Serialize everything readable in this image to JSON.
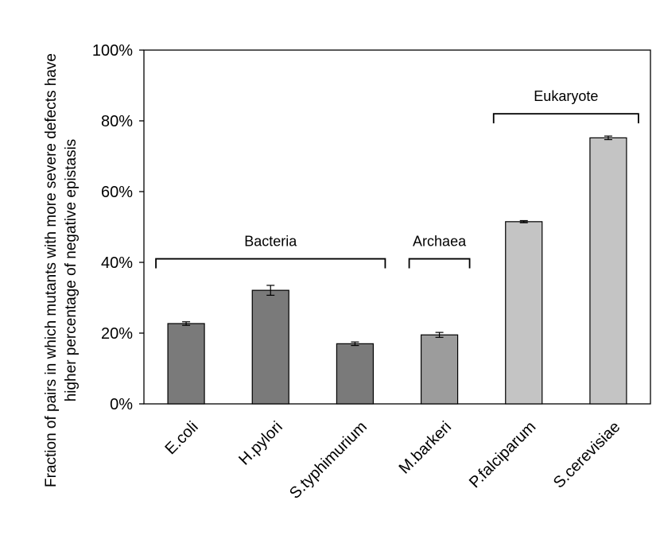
{
  "chart_data": {
    "type": "bar",
    "title": "",
    "xlabel": "",
    "ylabel_lines": [
      "Fraction of pairs in which mutants with more severe defects have",
      "higher percentage of negative epistasis"
    ],
    "ylim": [
      0,
      100
    ],
    "yticks": [
      0,
      20,
      40,
      60,
      80,
      100
    ],
    "ytick_labels": [
      "0%",
      "20%",
      "40%",
      "60%",
      "80%",
      "100%"
    ],
    "grid": false,
    "legend": "none",
    "categories": [
      "E.coli",
      "H.pylori",
      "S.typhimurium",
      "M.barkeri",
      "P.falciparum",
      "S.cerevisiae"
    ],
    "values": [
      22.7,
      32.1,
      17.0,
      19.5,
      51.5,
      75.2
    ],
    "errors": [
      0.5,
      1.4,
      0.5,
      0.7,
      0.3,
      0.5
    ],
    "bar_colors": [
      "#7a7a7a",
      "#7a7a7a",
      "#7a7a7a",
      "#9c9c9c",
      "#c4c4c4",
      "#c4c4c4"
    ],
    "groups": [
      {
        "label": "Bacteria",
        "start": 0,
        "end": 2,
        "y": 41
      },
      {
        "label": "Archaea",
        "start": 3,
        "end": 3,
        "y": 41
      },
      {
        "label": "Eukaryote",
        "start": 4,
        "end": 5,
        "y": 82
      }
    ]
  }
}
